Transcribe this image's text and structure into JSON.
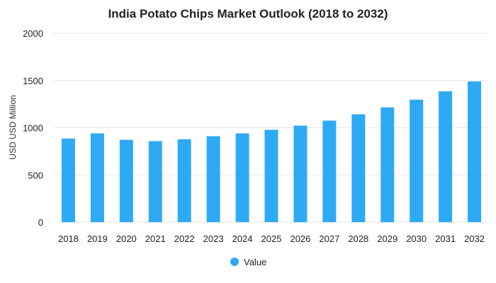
{
  "chart_data": {
    "type": "bar",
    "title": "India Potato Chips Market Outlook (2018 to 2032)",
    "xlabel": "",
    "ylabel": "USD USD Million",
    "ylim": [
      0,
      2000
    ],
    "yticks": [
      "0",
      "500",
      "1000",
      "1500",
      "2000"
    ],
    "grid": true,
    "legend_position": "bottom",
    "categories": [
      "2018",
      "2019",
      "2020",
      "2021",
      "2022",
      "2023",
      "2024",
      "2025",
      "2026",
      "2027",
      "2028",
      "2029",
      "2030",
      "2031",
      "2032"
    ],
    "series": [
      {
        "name": "Value",
        "color": "#2eaaf5",
        "values": [
          885,
          940,
          872,
          858,
          878,
          910,
          940,
          978,
          1022,
          1075,
          1142,
          1215,
          1297,
          1385,
          1490
        ]
      }
    ]
  }
}
